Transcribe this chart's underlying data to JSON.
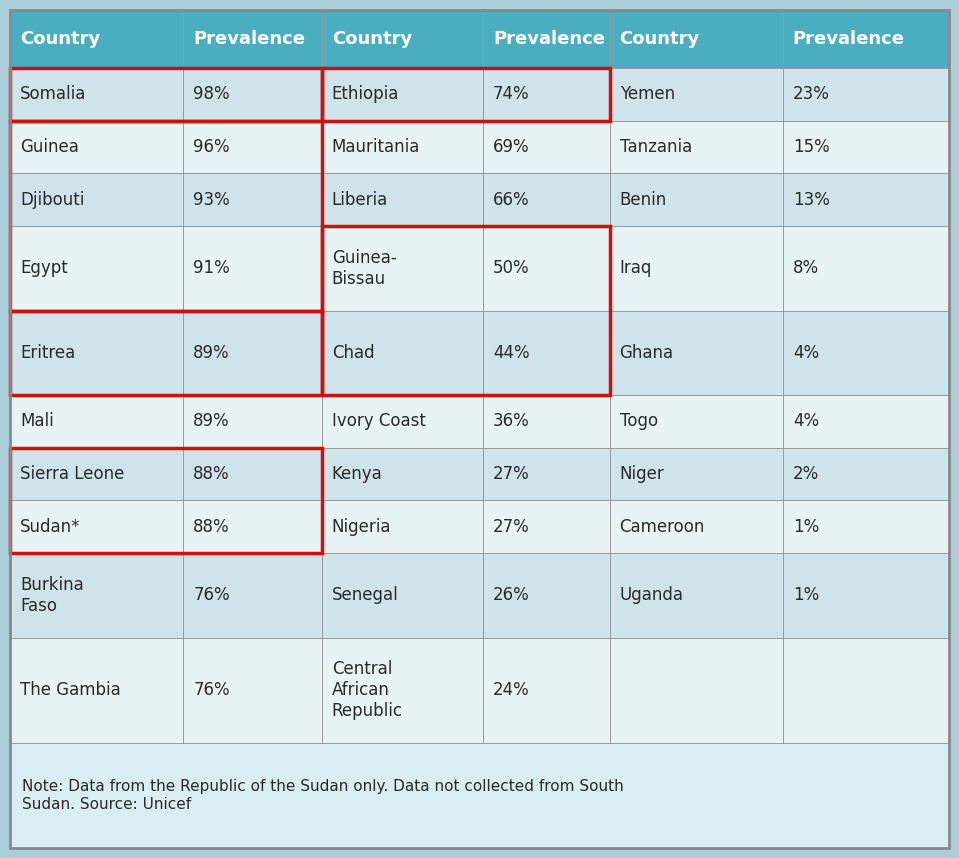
{
  "header": [
    "Country",
    "Prevalence",
    "Country",
    "Prevalence",
    "Country",
    "Prevalence"
  ],
  "col1": [
    [
      "Somalia",
      "98%"
    ],
    [
      "Guinea",
      "96%"
    ],
    [
      "Djibouti",
      "93%"
    ],
    [
      "Egypt",
      "91%"
    ],
    [
      "Eritrea",
      "89%"
    ],
    [
      "Mali",
      "89%"
    ],
    [
      "Sierra Leone",
      "88%"
    ],
    [
      "Sudan*",
      "88%"
    ],
    [
      "Burkina\nFaso",
      "76%"
    ],
    [
      "The Gambia",
      "76%"
    ]
  ],
  "col2": [
    [
      "Ethiopia",
      "74%"
    ],
    [
      "Mauritania",
      "69%"
    ],
    [
      "Liberia",
      "66%"
    ],
    [
      "Guinea-\nBissau",
      "50%"
    ],
    [
      "Chad",
      "44%"
    ],
    [
      "Ivory Coast",
      "36%"
    ],
    [
      "Kenya",
      "27%"
    ],
    [
      "Nigeria",
      "27%"
    ],
    [
      "Senegal",
      "26%"
    ],
    [
      "Central\nAfrican\nRepublic",
      "24%"
    ]
  ],
  "col3": [
    [
      "Yemen",
      "23%"
    ],
    [
      "Tanzania",
      "15%"
    ],
    [
      "Benin",
      "13%"
    ],
    [
      "Iraq",
      "8%"
    ],
    [
      "Ghana",
      "4%"
    ],
    [
      "Togo",
      "4%"
    ],
    [
      "Niger",
      "2%"
    ],
    [
      "Cameroon",
      "1%"
    ],
    [
      "Uganda",
      "1%"
    ],
    [
      "",
      ""
    ]
  ],
  "note": "Note: Data from the Republic of the Sudan only. Data not collected from South\nSudan. Source: Unicef",
  "header_bg": "#4aaec0",
  "header_text": "#ffffff",
  "row_bg_even": "#cfe3ea",
  "row_bg_odd": "#e8f3f6",
  "outer_bg": "#aacfda",
  "note_bg": "#daedf3",
  "border_color": "#888888",
  "grid_color": "#999999",
  "text_color": "#2a2a2a",
  "red_color": "#cc1111"
}
